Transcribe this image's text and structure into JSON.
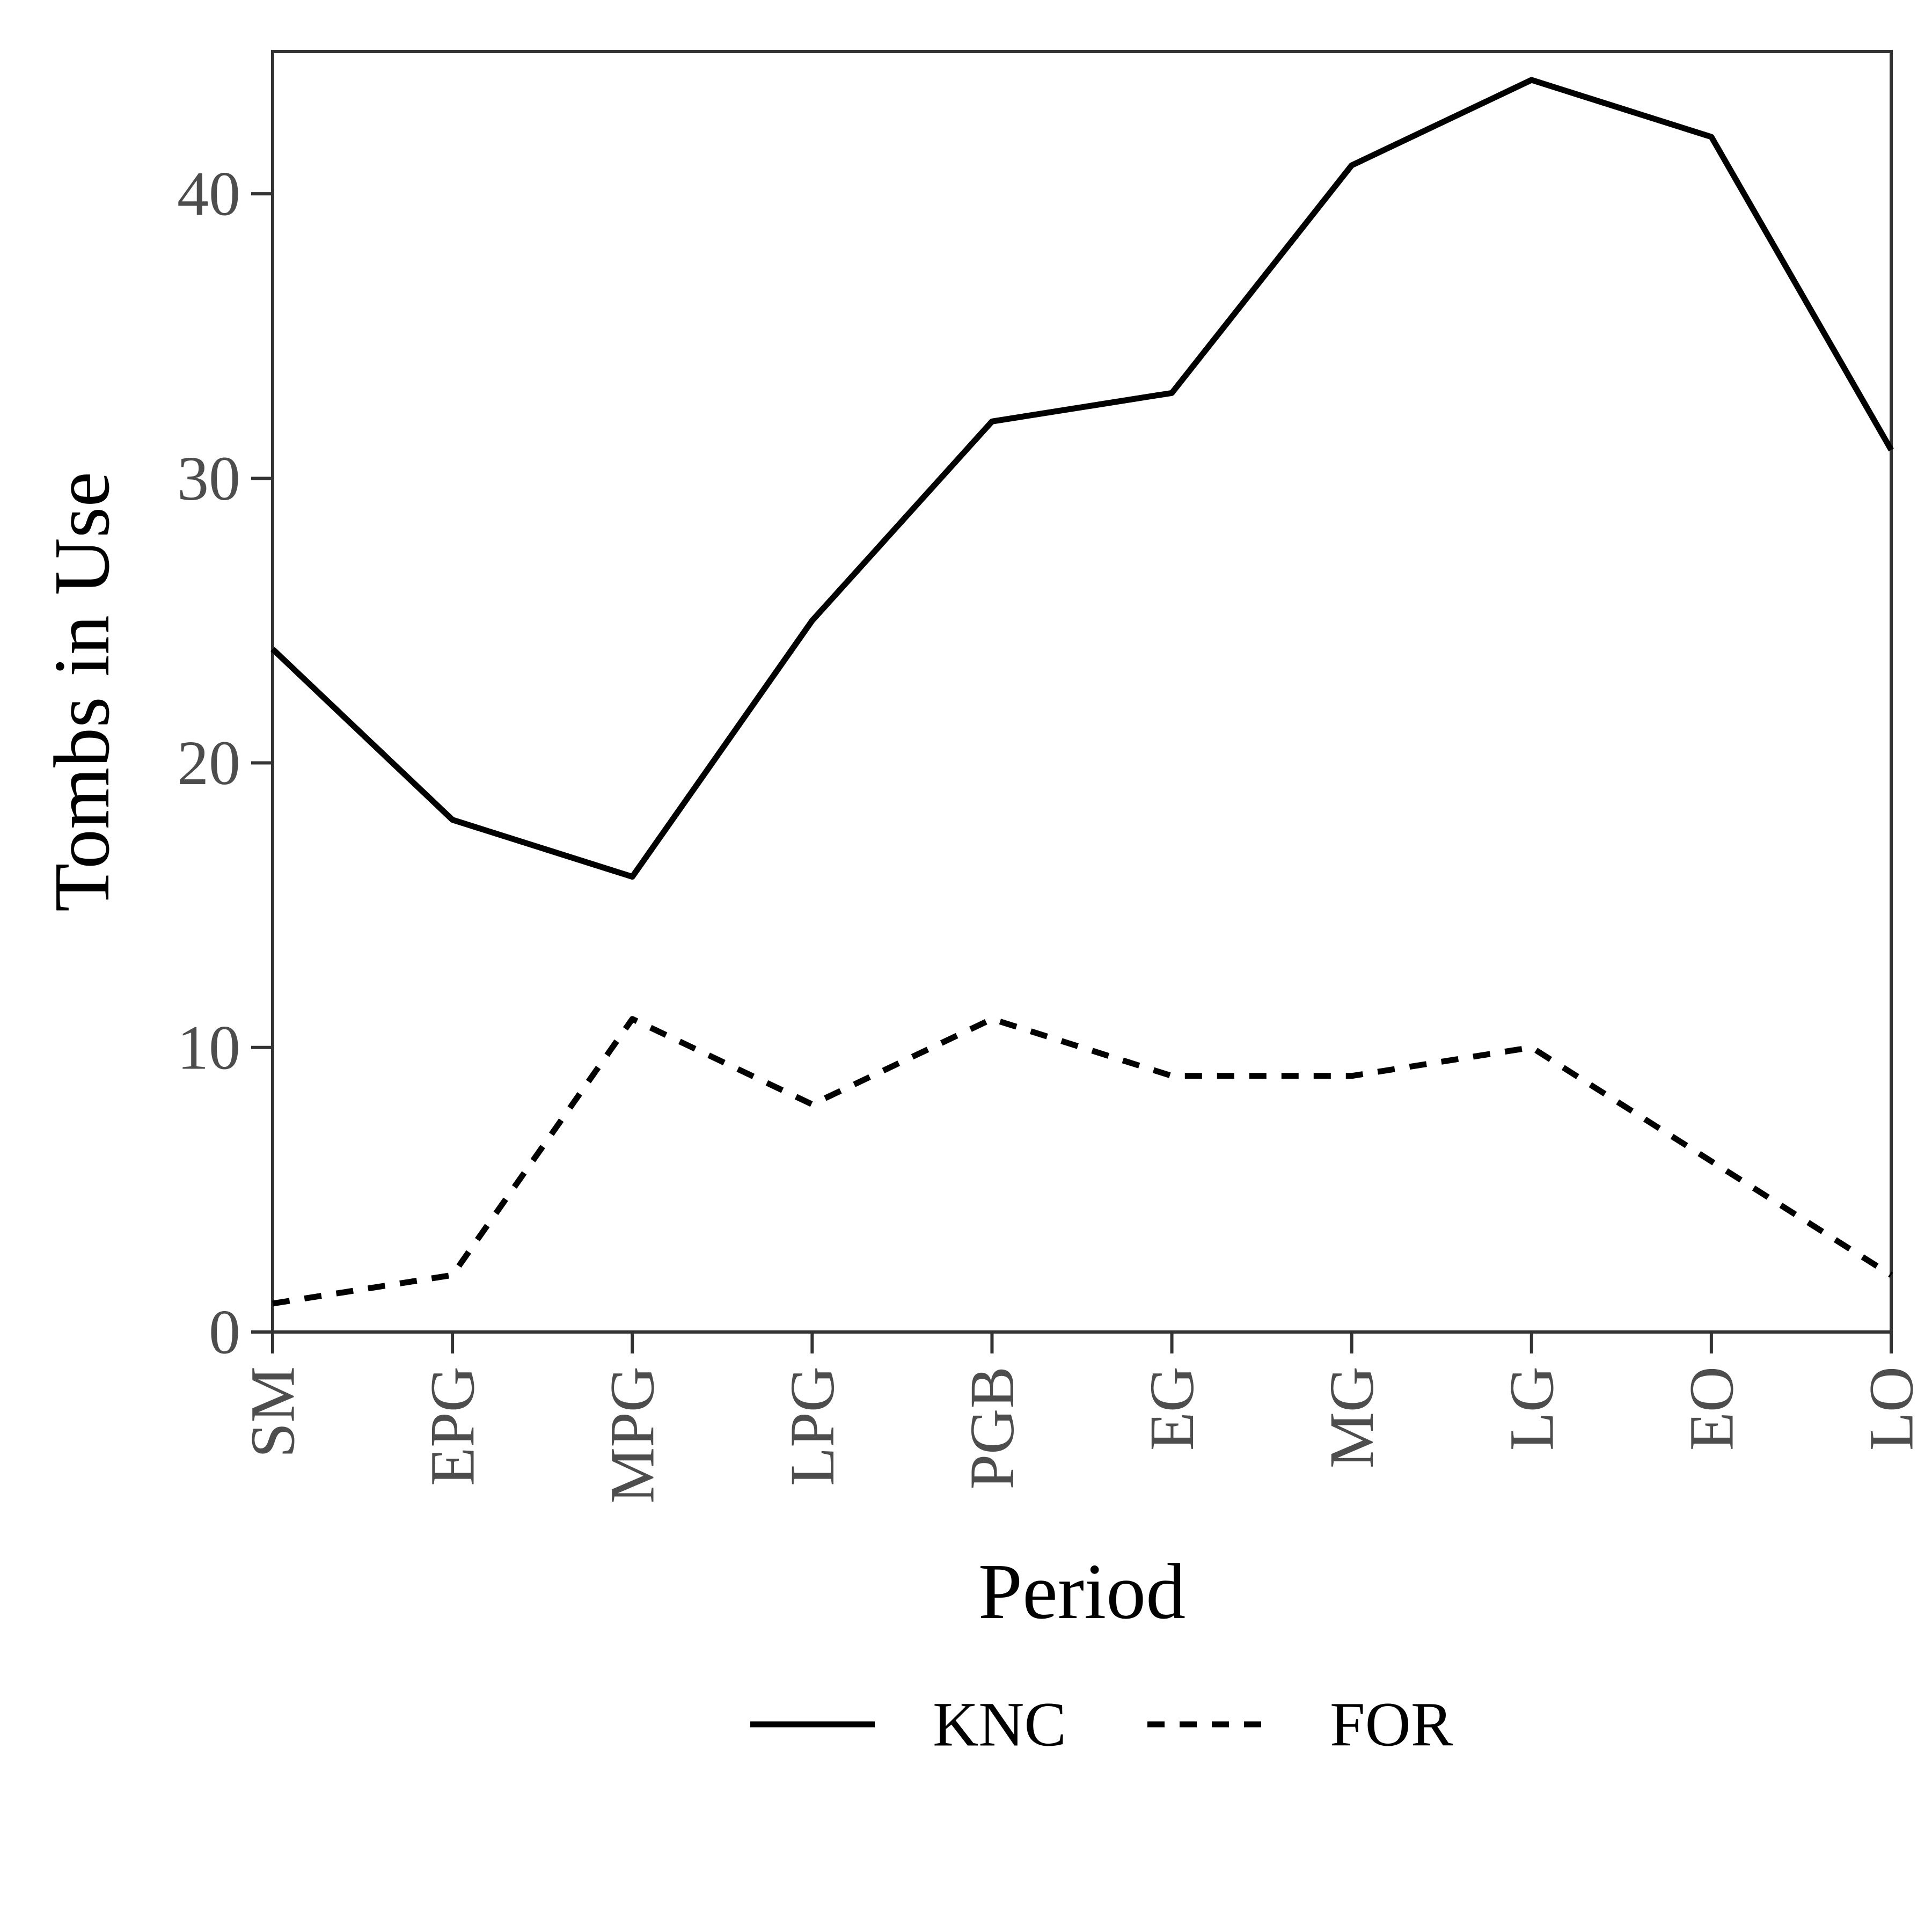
{
  "chart_data": {
    "type": "line",
    "xlabel": "Period",
    "ylabel": "Tombs in Use",
    "categories": [
      "SM",
      "EPG",
      "MPG",
      "LPG",
      "PGB",
      "EG",
      "MG",
      "LG",
      "EO",
      "LO"
    ],
    "ylim": [
      0,
      45
    ],
    "yticks": [
      0,
      10,
      20,
      30,
      40
    ],
    "grid": false,
    "legend_position": "bottom",
    "series": [
      {
        "name": "KNC",
        "line_style": "solid",
        "color": "#000000",
        "values": [
          24,
          18,
          16,
          25,
          32,
          33,
          41,
          44,
          42,
          31
        ]
      },
      {
        "name": "FOR",
        "line_style": "dashed",
        "color": "#000000",
        "values": [
          1,
          2,
          11,
          8,
          11,
          9,
          9,
          10,
          6,
          2
        ]
      }
    ]
  }
}
